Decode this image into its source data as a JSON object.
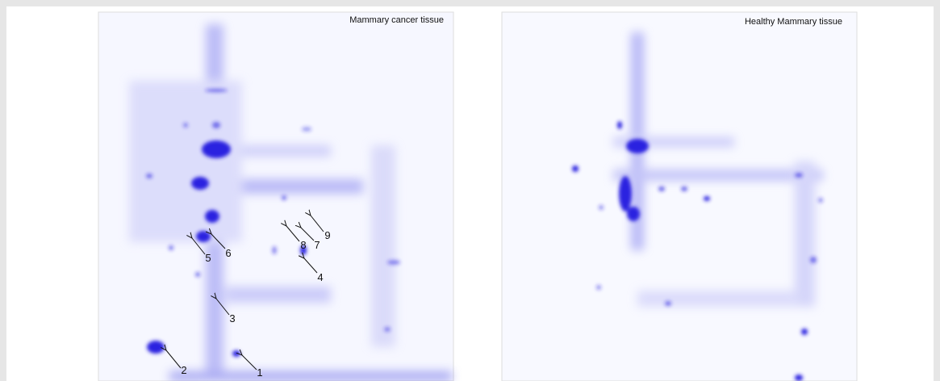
{
  "panels": [
    {
      "title": "Mammary cancer tissue",
      "spot_labels": [
        "1",
        "2",
        "3",
        "4",
        "5",
        "6",
        "7",
        "8",
        "9"
      ]
    },
    {
      "title": "Healthy Mammary tissue"
    }
  ]
}
